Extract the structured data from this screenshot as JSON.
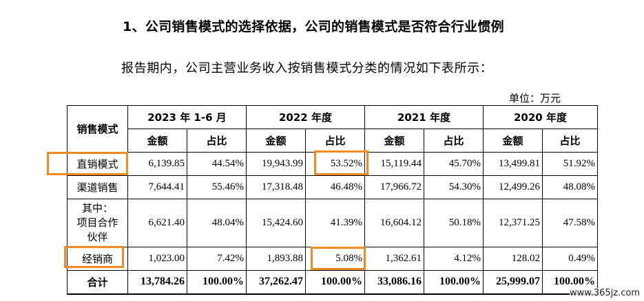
{
  "heading": "1、公司销售模式的选择依据，公司的销售模式是否符合行业惯例",
  "intro": "报告期内，公司主营业务收入按销售模式分类的情况如下表所示：",
  "unit": "单位：万元",
  "table": {
    "mode_header": "销售模式",
    "periods": [
      "2023 年 1-6 月",
      "2022 年度",
      "2021 年度",
      "2020 年度"
    ],
    "sub_headers": [
      "金额",
      "占比"
    ],
    "rows": [
      {
        "label": "直销模式",
        "cells": [
          "6,139.85",
          "44.54%",
          "19,943.99",
          "53.52%",
          "15,119.44",
          "45.70%",
          "13,499.81",
          "51.92%"
        ]
      },
      {
        "label": "渠道销售",
        "cells": [
          "7,644.41",
          "55.46%",
          "17,318.48",
          "46.48%",
          "17,966.72",
          "54.30%",
          "12,499.26",
          "48.08%"
        ]
      },
      {
        "label_lines": [
          "其中：",
          "项目合作",
          "伙伴"
        ],
        "cells": [
          "6,621.40",
          "48.04%",
          "15,424.60",
          "41.39%",
          "16,604.12",
          "50.18%",
          "12,371.25",
          "47.58%"
        ]
      },
      {
        "label": "经销商",
        "cells": [
          "1,023.00",
          "7.42%",
          "1,893.88",
          "5.08%",
          "1,362.61",
          "4.12%",
          "128.02",
          "0.49%"
        ]
      },
      {
        "label": "合计",
        "cells": [
          "13,784.26",
          "100.00%",
          "37,262.47",
          "100.00%",
          "33,086.16",
          "100.00%",
          "25,999.07",
          "100.00%"
        ]
      }
    ]
  },
  "highlight_color": "#f08a24",
  "watermark": "www.365jz.com"
}
